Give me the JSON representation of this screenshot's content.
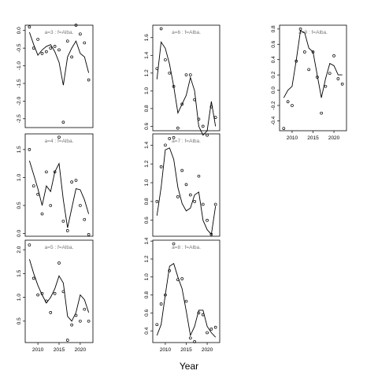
{
  "figure": {
    "xlabel": "Year"
  },
  "chart_data": [
    {
      "type": "line",
      "label": "a=3 : f=Alba.",
      "xlim": [
        2007,
        2023
      ],
      "ylim": [
        -2.75,
        0.15
      ],
      "yticks": [
        "0.0",
        "-0.5",
        "-1.0",
        "-1.5",
        "-2.0",
        "-2.5"
      ],
      "ytick_values": [
        0,
        -0.5,
        -1,
        -1.5,
        -2,
        -2.5
      ],
      "xticks": [],
      "xtick_values": [],
      "points": [
        [
          2008,
          0.1
        ],
        [
          2009,
          -0.5
        ],
        [
          2010,
          -0.25
        ],
        [
          2011,
          -0.65
        ],
        [
          2012,
          -0.6
        ],
        [
          2013,
          -0.5
        ],
        [
          2014,
          -0.45
        ],
        [
          2015,
          -0.55
        ],
        [
          2016,
          -2.6
        ],
        [
          2017,
          -0.3
        ],
        [
          2018,
          -0.75
        ],
        [
          2019,
          0.15
        ],
        [
          2020,
          -0.1
        ],
        [
          2021,
          -0.35
        ],
        [
          2022,
          -1.4
        ]
      ],
      "fit": [
        [
          2008,
          -0.05
        ],
        [
          2009,
          -0.4
        ],
        [
          2010,
          -0.7
        ],
        [
          2011,
          -0.55
        ],
        [
          2012,
          -0.45
        ],
        [
          2013,
          -0.4
        ],
        [
          2014,
          -0.6
        ],
        [
          2015,
          -0.9
        ],
        [
          2016,
          -1.55
        ],
        [
          2017,
          -0.75
        ],
        [
          2018,
          -0.5
        ],
        [
          2019,
          -0.3
        ],
        [
          2020,
          -0.65
        ],
        [
          2021,
          -0.75
        ],
        [
          2022,
          -1.2
        ]
      ]
    },
    {
      "type": "line",
      "label": "a=4 : f=Alba.",
      "xlim": [
        2007,
        2023
      ],
      "ylim": [
        -0.05,
        1.78
      ],
      "yticks": [
        "0.0",
        "0.5",
        "1.0",
        "1.5"
      ],
      "ytick_values": [
        0,
        0.5,
        1,
        1.5
      ],
      "xticks": [],
      "xtick_values": [],
      "points": [
        [
          2008,
          1.5
        ],
        [
          2009,
          0.85
        ],
        [
          2010,
          0.7
        ],
        [
          2011,
          0.35
        ],
        [
          2012,
          1.1
        ],
        [
          2013,
          0.5
        ],
        [
          2014,
          1.1
        ],
        [
          2015,
          1.72
        ],
        [
          2016,
          0.22
        ],
        [
          2017,
          0.05
        ],
        [
          2018,
          0.92
        ],
        [
          2019,
          0.95
        ],
        [
          2020,
          0.5
        ],
        [
          2021,
          0.25
        ],
        [
          2022,
          -0.02
        ]
      ],
      "fit": [
        [
          2008,
          1.3
        ],
        [
          2009,
          1.05
        ],
        [
          2010,
          0.8
        ],
        [
          2011,
          0.5
        ],
        [
          2012,
          0.85
        ],
        [
          2013,
          0.75
        ],
        [
          2014,
          1.1
        ],
        [
          2015,
          1.25
        ],
        [
          2016,
          0.6
        ],
        [
          2017,
          0.1
        ],
        [
          2018,
          0.45
        ],
        [
          2019,
          0.8
        ],
        [
          2020,
          0.78
        ],
        [
          2021,
          0.6
        ],
        [
          2022,
          0.35
        ]
      ]
    },
    {
      "type": "line",
      "label": "a=5 : f=Alba.",
      "xlim": [
        2007,
        2023
      ],
      "ylim": [
        0.05,
        2.2
      ],
      "yticks": [
        "0.5",
        "1.0",
        "1.5",
        "2.0"
      ],
      "ytick_values": [
        0.5,
        1,
        1.5,
        2
      ],
      "xticks": [
        "2010",
        "2015",
        "2020"
      ],
      "xtick_values": [
        2010,
        2015,
        2020
      ],
      "points": [
        [
          2008,
          2.1
        ],
        [
          2009,
          1.4
        ],
        [
          2010,
          1.05
        ],
        [
          2011,
          1.08
        ],
        [
          2012,
          0.92
        ],
        [
          2013,
          0.68
        ],
        [
          2014,
          1.08
        ],
        [
          2015,
          1.72
        ],
        [
          2016,
          1.12
        ],
        [
          2017,
          0.1
        ],
        [
          2018,
          0.42
        ],
        [
          2019,
          0.62
        ],
        [
          2020,
          0.5
        ],
        [
          2021,
          0.75
        ],
        [
          2022,
          0.5
        ]
      ],
      "fit": [
        [
          2008,
          1.8
        ],
        [
          2009,
          1.5
        ],
        [
          2010,
          1.25
        ],
        [
          2011,
          1.05
        ],
        [
          2012,
          0.88
        ],
        [
          2013,
          1.0
        ],
        [
          2014,
          1.18
        ],
        [
          2015,
          1.45
        ],
        [
          2016,
          1.3
        ],
        [
          2017,
          0.6
        ],
        [
          2018,
          0.5
        ],
        [
          2019,
          0.68
        ],
        [
          2020,
          1.05
        ],
        [
          2021,
          0.95
        ],
        [
          2022,
          0.68
        ]
      ]
    },
    {
      "type": "line",
      "label": "a=6 : f=Alba.",
      "xlim": [
        2007,
        2023
      ],
      "ylim": [
        0.55,
        1.74
      ],
      "yticks": [
        "0.6",
        "0.8",
        "1.0",
        "1.2",
        "1.4",
        "1.6"
      ],
      "ytick_values": [
        0.6,
        0.8,
        1.0,
        1.2,
        1.4,
        1.6
      ],
      "xticks": [],
      "xtick_values": [],
      "points": [
        [
          2008,
          1.25
        ],
        [
          2009,
          1.7
        ],
        [
          2010,
          1.35
        ],
        [
          2011,
          1.2
        ],
        [
          2012,
          1.05
        ],
        [
          2013,
          0.58
        ],
        [
          2014,
          0.85
        ],
        [
          2015,
          1.18
        ],
        [
          2016,
          1.18
        ],
        [
          2017,
          0.9
        ],
        [
          2018,
          0.68
        ],
        [
          2019,
          0.6
        ],
        [
          2020,
          0.5
        ],
        [
          2021,
          0.82
        ],
        [
          2022,
          0.7
        ]
      ],
      "fit": [
        [
          2008,
          1.13
        ],
        [
          2009,
          1.55
        ],
        [
          2010,
          1.48
        ],
        [
          2011,
          1.3
        ],
        [
          2012,
          1.05
        ],
        [
          2013,
          0.75
        ],
        [
          2014,
          0.85
        ],
        [
          2015,
          0.95
        ],
        [
          2016,
          1.15
        ],
        [
          2017,
          1.0
        ],
        [
          2018,
          0.6
        ],
        [
          2019,
          0.5
        ],
        [
          2020,
          0.55
        ],
        [
          2021,
          0.88
        ],
        [
          2022,
          0.6
        ]
      ]
    },
    {
      "type": "line",
      "label": "a=7 : f=Alba.",
      "xlim": [
        2007,
        2023
      ],
      "ylim": [
        0.43,
        1.52
      ],
      "yticks": [
        "0.6",
        "0.8",
        "1.0",
        "1.2",
        "1.4"
      ],
      "ytick_values": [
        0.6,
        0.8,
        1.0,
        1.2,
        1.4
      ],
      "xticks": [],
      "xtick_values": [],
      "points": [
        [
          2008,
          0.8
        ],
        [
          2009,
          1.17
        ],
        [
          2010,
          1.4
        ],
        [
          2011,
          1.47
        ],
        [
          2012,
          1.48
        ],
        [
          2013,
          0.85
        ],
        [
          2014,
          1.13
        ],
        [
          2015,
          0.98
        ],
        [
          2016,
          0.87
        ],
        [
          2017,
          0.8
        ],
        [
          2018,
          1.07
        ],
        [
          2019,
          0.77
        ],
        [
          2020,
          0.6
        ],
        [
          2021,
          0.45
        ],
        [
          2022,
          0.77
        ]
      ],
      "fit": [
        [
          2008,
          0.65
        ],
        [
          2009,
          0.95
        ],
        [
          2010,
          1.35
        ],
        [
          2011,
          1.37
        ],
        [
          2012,
          1.25
        ],
        [
          2013,
          0.95
        ],
        [
          2014,
          0.78
        ],
        [
          2015,
          0.7
        ],
        [
          2016,
          0.73
        ],
        [
          2017,
          0.87
        ],
        [
          2018,
          0.9
        ],
        [
          2019,
          0.6
        ],
        [
          2020,
          0.5
        ],
        [
          2021,
          0.45
        ],
        [
          2022,
          0.75
        ]
      ]
    },
    {
      "type": "line",
      "label": "a=8 : f=Alba.",
      "xlim": [
        2007,
        2023
      ],
      "ylim": [
        0.27,
        1.41
      ],
      "yticks": [
        "0.4",
        "0.6",
        "0.8",
        "1.0",
        "1.2",
        "1.4"
      ],
      "ytick_values": [
        0.4,
        0.6,
        0.8,
        1.0,
        1.2,
        1.4
      ],
      "xticks": [
        "2010",
        "2015",
        "2020"
      ],
      "xtick_values": [
        2010,
        2015,
        2020
      ],
      "points": [
        [
          2008,
          0.47
        ],
        [
          2009,
          0.7
        ],
        [
          2010,
          0.8
        ],
        [
          2011,
          1.07
        ],
        [
          2012,
          1.37
        ],
        [
          2013,
          0.97
        ],
        [
          2014,
          0.98
        ],
        [
          2015,
          0.73
        ],
        [
          2016,
          0.32
        ],
        [
          2017,
          0.28
        ],
        [
          2018,
          0.6
        ],
        [
          2019,
          0.58
        ],
        [
          2020,
          0.38
        ],
        [
          2021,
          0.42
        ],
        [
          2022,
          0.44
        ]
      ],
      "fit": [
        [
          2008,
          0.35
        ],
        [
          2009,
          0.47
        ],
        [
          2010,
          0.8
        ],
        [
          2011,
          1.12
        ],
        [
          2012,
          1.15
        ],
        [
          2013,
          1.0
        ],
        [
          2014,
          0.87
        ],
        [
          2015,
          0.62
        ],
        [
          2016,
          0.35
        ],
        [
          2017,
          0.45
        ],
        [
          2018,
          0.63
        ],
        [
          2019,
          0.63
        ],
        [
          2020,
          0.45
        ],
        [
          2021,
          0.38
        ],
        [
          2022,
          0.33
        ]
      ]
    },
    {
      "type": "line",
      "label": "a=9 : f=Alba.",
      "xlim": [
        2007,
        2023
      ],
      "ylim": [
        -0.53,
        0.85
      ],
      "yticks": [
        "-0.4",
        "-0.2",
        "0.0",
        "0.2",
        "0.4",
        "0.6",
        "0.8"
      ],
      "ytick_values": [
        -0.4,
        -0.2,
        0,
        0.2,
        0.4,
        0.6,
        0.8
      ],
      "xticks": [
        "2010",
        "2015",
        "2020"
      ],
      "xtick_values": [
        2010,
        2015,
        2020
      ],
      "points": [
        [
          2008,
          -0.5
        ],
        [
          2009,
          -0.15
        ],
        [
          2010,
          -0.2
        ],
        [
          2011,
          0.38
        ],
        [
          2012,
          0.8
        ],
        [
          2013,
          0.5
        ],
        [
          2014,
          0.27
        ],
        [
          2015,
          0.5
        ],
        [
          2016,
          0.17
        ],
        [
          2017,
          -0.3
        ],
        [
          2018,
          0.05
        ],
        [
          2019,
          0.22
        ],
        [
          2020,
          0.45
        ],
        [
          2021,
          0.15
        ],
        [
          2022,
          0.08
        ]
      ],
      "fit": [
        [
          2008,
          -0.1
        ],
        [
          2009,
          0.0
        ],
        [
          2010,
          0.05
        ],
        [
          2011,
          0.4
        ],
        [
          2012,
          0.78
        ],
        [
          2013,
          0.75
        ],
        [
          2014,
          0.55
        ],
        [
          2015,
          0.5
        ],
        [
          2016,
          0.2
        ],
        [
          2017,
          -0.1
        ],
        [
          2018,
          0.15
        ],
        [
          2019,
          0.35
        ],
        [
          2020,
          0.32
        ],
        [
          2021,
          0.2
        ],
        [
          2022,
          0.2
        ]
      ]
    }
  ]
}
